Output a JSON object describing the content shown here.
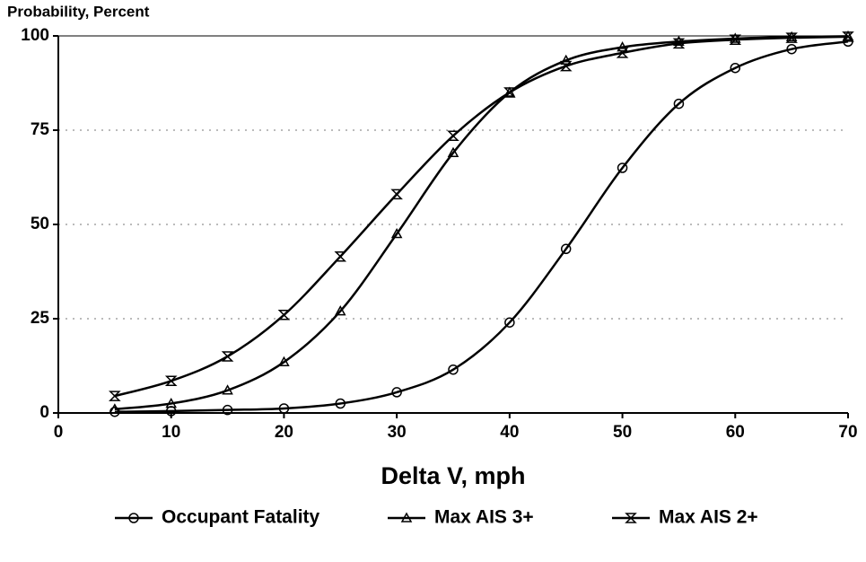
{
  "chart_data": {
    "type": "line",
    "y_axis_label": "Probability, Percent",
    "x_axis_label": "Delta V, mph",
    "x": [
      5,
      10,
      15,
      20,
      25,
      30,
      35,
      40,
      45,
      50,
      55,
      60,
      65,
      70
    ],
    "series": [
      {
        "name": "Occupant Fatality",
        "color": "#000000",
        "marker": "circle",
        "values": [
          0.3,
          0.5,
          0.8,
          1.2,
          2.5,
          5.5,
          11.5,
          24,
          43.5,
          65,
          82,
          91.5,
          96.5,
          98.5
        ]
      },
      {
        "name": "Max AIS 3+",
        "color": "#000000",
        "marker": "triangle",
        "values": [
          1,
          2.5,
          6,
          13.5,
          27,
          47.5,
          69,
          85,
          93.5,
          97,
          98.5,
          99.3,
          99.7,
          99.9
        ]
      },
      {
        "name": "Max AIS 2+",
        "color": "#000000",
        "marker": "hourglass",
        "values": [
          4.5,
          8.5,
          15,
          26,
          41.5,
          58,
          73.5,
          85,
          92,
          95.5,
          98,
          99,
          99.5,
          99.8
        ]
      }
    ],
    "xlim": [
      0,
      70
    ],
    "xticks": [
      0,
      10,
      20,
      30,
      40,
      50,
      60,
      70
    ],
    "ylim": [
      0,
      100
    ],
    "yticks": [
      0,
      25,
      50,
      75,
      100
    ],
    "grid": true,
    "grid_style": "dotted",
    "legend": "bottom"
  }
}
